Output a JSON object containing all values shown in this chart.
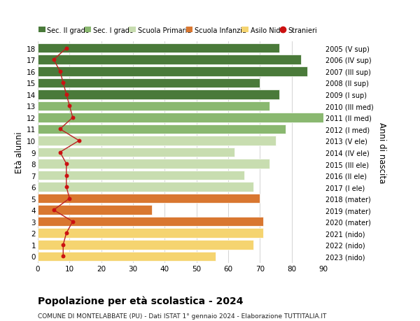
{
  "ages": [
    0,
    1,
    2,
    3,
    4,
    5,
    6,
    7,
    8,
    9,
    10,
    11,
    12,
    13,
    14,
    15,
    16,
    17,
    18
  ],
  "anni_nascita": [
    "2023 (nido)",
    "2022 (nido)",
    "2021 (nido)",
    "2020 (mater)",
    "2019 (mater)",
    "2018 (mater)",
    "2017 (I ele)",
    "2016 (II ele)",
    "2015 (III ele)",
    "2014 (IV ele)",
    "2013 (V ele)",
    "2012 (I med)",
    "2011 (II med)",
    "2010 (III med)",
    "2009 (I sup)",
    "2008 (II sup)",
    "2007 (III sup)",
    "2006 (IV sup)",
    "2005 (V sup)"
  ],
  "bar_values": [
    56,
    68,
    71,
    71,
    36,
    70,
    68,
    65,
    73,
    62,
    75,
    78,
    90,
    73,
    76,
    70,
    85,
    83,
    76
  ],
  "bar_colors": [
    "#f5d470",
    "#f5d470",
    "#f5d470",
    "#d97730",
    "#d97730",
    "#d97730",
    "#c8ddb0",
    "#c8ddb0",
    "#c8ddb0",
    "#c8ddb0",
    "#c8ddb0",
    "#8ab870",
    "#8ab870",
    "#8ab870",
    "#4a7a3a",
    "#4a7a3a",
    "#4a7a3a",
    "#4a7a3a",
    "#4a7a3a"
  ],
  "stranieri_values": [
    8,
    8,
    9,
    11,
    5,
    10,
    9,
    9,
    9,
    7,
    13,
    7,
    11,
    10,
    9,
    8,
    7,
    5,
    9
  ],
  "stranieri_color": "#cc1111",
  "stranieri_line_color": "#bb2222",
  "legend_items": [
    {
      "label": "Sec. II grado",
      "color": "#4a7a3a"
    },
    {
      "label": "Sec. I grado",
      "color": "#8ab870"
    },
    {
      "label": "Scuola Primaria",
      "color": "#c8ddb0"
    },
    {
      "label": "Scuola Infanzia",
      "color": "#d97730"
    },
    {
      "label": "Asilo Nido",
      "color": "#f5d470"
    },
    {
      "label": "Stranieri",
      "color": "#cc1111"
    }
  ],
  "ylabel_left": "Età alunni",
  "ylabel_right": "Anni di nascita",
  "xlim": [
    0,
    90
  ],
  "xticks": [
    0,
    10,
    20,
    30,
    40,
    50,
    60,
    70,
    80,
    90
  ],
  "title_line1": "Popolazione per età scolastica - 2024",
  "title_line2": "COMUNE DI MONTELABBATE (PU) - Dati ISTAT 1° gennaio 2024 - Elaborazione TUTTITALIA.IT",
  "bg_color": "#ffffff",
  "grid_color": "#cccccc",
  "bar_height": 0.82
}
